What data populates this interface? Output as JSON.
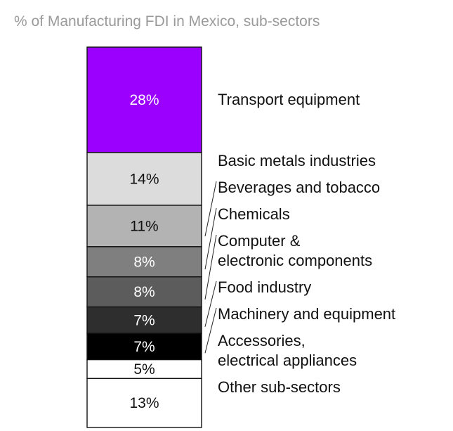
{
  "chart_data": {
    "type": "bar",
    "stacked": true,
    "title": "% of Manufacturing FDI in Mexico, sub-sectors",
    "unit": "%",
    "series": [
      {
        "label": "28%",
        "value": 28,
        "color": "#9b00ff",
        "text_color": "#ffffff",
        "category": [
          "Transport equipment"
        ]
      },
      {
        "label": "14%",
        "value": 14,
        "color": "#dcdcdc",
        "text_color": "#111111",
        "category": [
          "Basic metals industries"
        ]
      },
      {
        "label": "11%",
        "value": 11,
        "color": "#b3b3b3",
        "text_color": "#111111",
        "category": [
          "Beverages and tobacco"
        ]
      },
      {
        "label": "8%",
        "value": 8,
        "color": "#7f7f7f",
        "text_color": "#ffffff",
        "category": [
          "Chemicals"
        ]
      },
      {
        "label": "8%",
        "value": 8,
        "color": "#5c5c5c",
        "text_color": "#ffffff",
        "category": [
          "Computer &",
          "electronic components"
        ]
      },
      {
        "label": "7%",
        "value": 7,
        "color": "#2e2e2e",
        "text_color": "#ffffff",
        "category": [
          "Food industry"
        ]
      },
      {
        "label": "7%",
        "value": 7,
        "color": "#000000",
        "text_color": "#ffffff",
        "category": [
          "Machinery and equipment"
        ]
      },
      {
        "label": "5%",
        "value": 5,
        "color": "#ffffff",
        "text_color": "#111111",
        "category": [
          "Accessories,",
          "electrical appliances"
        ]
      },
      {
        "label": "13%",
        "value": 13,
        "color": "#ffffff",
        "text_color": "#111111",
        "category": [
          "Other sub-sectors"
        ]
      }
    ]
  }
}
